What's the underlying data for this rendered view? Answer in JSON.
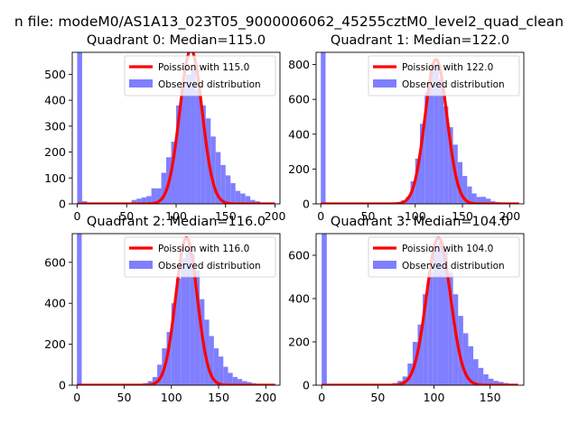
{
  "suptitle": "n file: modeM0/AS1A13_023T05_9000006062_45255cztM0_level2_quad_clean",
  "colors": {
    "histogram": "#7f7fff",
    "poisson": "#ff0000",
    "axes": "#000000"
  },
  "chart_data": [
    {
      "type": "bar",
      "title": "Quadrant 0: Median=115.0",
      "median": 115.0,
      "xlim": [
        -5,
        205
      ],
      "ylim": [
        0,
        585
      ],
      "xticks": [
        0,
        50,
        100,
        150,
        200
      ],
      "xtick_labels": [
        "0",
        "50",
        "100",
        "150",
        "200"
      ],
      "yticks": [
        0,
        100,
        200,
        300,
        400,
        500
      ],
      "ytick_labels": [
        "0",
        "100",
        "200",
        "300",
        "400",
        "500"
      ],
      "legend": [
        "Poission with 115.0",
        "Observed distribution"
      ],
      "legend_loc": "upper right",
      "bin_width": 5,
      "hist_bins": [
        0,
        5,
        10,
        15,
        20,
        25,
        30,
        35,
        40,
        45,
        50,
        55,
        60,
        65,
        70,
        75,
        80,
        85,
        90,
        95,
        100,
        105,
        110,
        115,
        120,
        125,
        130,
        135,
        140,
        145,
        150,
        155,
        160,
        165,
        170,
        175,
        180,
        185,
        190,
        195
      ],
      "hist_counts": [
        585,
        10,
        5,
        3,
        2,
        2,
        2,
        2,
        3,
        4,
        5,
        15,
        20,
        25,
        30,
        60,
        60,
        120,
        180,
        240,
        380,
        460,
        500,
        520,
        440,
        380,
        330,
        260,
        200,
        150,
        110,
        80,
        50,
        40,
        30,
        15,
        10,
        5,
        3,
        2
      ],
      "poisson_lambda": 115.0,
      "poisson_peak": 595
    },
    {
      "type": "bar",
      "title": "Quadrant 1: Median=122.0",
      "median": 122.0,
      "xlim": [
        -5,
        215
      ],
      "ylim": [
        0,
        870
      ],
      "xticks": [
        0,
        50,
        100,
        150,
        200
      ],
      "xtick_labels": [
        "0",
        "50",
        "100",
        "150",
        "200"
      ],
      "yticks": [
        0,
        200,
        400,
        600,
        800
      ],
      "ytick_labels": [
        "0",
        "200",
        "400",
        "600",
        "800"
      ],
      "legend": [
        "Poission with 122.0",
        "Observed distribution"
      ],
      "legend_loc": "upper right",
      "bin_width": 5,
      "hist_bins": [
        0,
        5,
        10,
        15,
        20,
        25,
        30,
        35,
        40,
        45,
        50,
        55,
        60,
        65,
        70,
        75,
        80,
        85,
        90,
        95,
        100,
        105,
        110,
        115,
        120,
        125,
        130,
        135,
        140,
        145,
        150,
        155,
        160,
        165,
        170,
        175,
        180,
        185,
        190,
        195,
        200,
        205
      ],
      "hist_counts": [
        870,
        5,
        3,
        2,
        2,
        2,
        2,
        2,
        2,
        3,
        3,
        4,
        5,
        5,
        5,
        5,
        10,
        20,
        40,
        130,
        260,
        460,
        640,
        760,
        800,
        720,
        560,
        440,
        340,
        240,
        160,
        100,
        60,
        40,
        40,
        30,
        15,
        10,
        5,
        3,
        2,
        2
      ],
      "poisson_lambda": 122.0,
      "poisson_peak": 830
    },
    {
      "type": "bar",
      "title": "Quadrant 2: Median=116.0",
      "median": 116.0,
      "xlim": [
        -5,
        215
      ],
      "ylim": [
        0,
        740
      ],
      "xticks": [
        0,
        50,
        100,
        150,
        200
      ],
      "xtick_labels": [
        "0",
        "50",
        "100",
        "150",
        "200"
      ],
      "yticks": [
        0,
        200,
        400,
        600
      ],
      "ytick_labels": [
        "0",
        "200",
        "400",
        "600"
      ],
      "legend": [
        "Poission with 116.0",
        "Observed distribution"
      ],
      "legend_loc": "upper right",
      "bin_width": 5,
      "hist_bins": [
        0,
        5,
        10,
        15,
        20,
        25,
        30,
        35,
        40,
        45,
        50,
        55,
        60,
        65,
        70,
        75,
        80,
        85,
        90,
        95,
        100,
        105,
        110,
        115,
        120,
        125,
        130,
        135,
        140,
        145,
        150,
        155,
        160,
        165,
        170,
        175,
        180,
        185,
        190,
        195,
        200,
        205
      ],
      "hist_counts": [
        740,
        3,
        2,
        2,
        2,
        2,
        2,
        2,
        2,
        2,
        2,
        3,
        3,
        5,
        10,
        20,
        40,
        100,
        180,
        260,
        400,
        520,
        620,
        660,
        640,
        560,
        420,
        320,
        240,
        180,
        140,
        90,
        60,
        40,
        30,
        20,
        15,
        10,
        5,
        3,
        2,
        2
      ],
      "poisson_lambda": 116.0,
      "poisson_peak": 720
    },
    {
      "type": "bar",
      "title": "Quadrant 3: Median=104.0",
      "median": 104.0,
      "xlim": [
        -5,
        180
      ],
      "ylim": [
        0,
        700
      ],
      "xticks": [
        0,
        50,
        100,
        150
      ],
      "xtick_labels": [
        "0",
        "50",
        "100",
        "150"
      ],
      "yticks": [
        0,
        200,
        400,
        600
      ],
      "ytick_labels": [
        "0",
        "200",
        "400",
        "600"
      ],
      "legend": [
        "Poission with 104.0",
        "Observed distribution"
      ],
      "legend_loc": "upper right",
      "bin_width": 4.5,
      "hist_bins": [
        0,
        4.5,
        9,
        13.5,
        18,
        22.5,
        27,
        31.5,
        36,
        40.5,
        45,
        49.5,
        54,
        58.5,
        63,
        67.5,
        72,
        76.5,
        81,
        85.5,
        90,
        94.5,
        99,
        103.5,
        108,
        112.5,
        117,
        121.5,
        126,
        130.5,
        135,
        139.5,
        144,
        148.5,
        153,
        157.5,
        162,
        166.5
      ],
      "hist_counts": [
        700,
        3,
        2,
        2,
        2,
        2,
        2,
        2,
        2,
        2,
        2,
        2,
        3,
        5,
        10,
        20,
        40,
        100,
        200,
        280,
        420,
        520,
        620,
        660,
        620,
        520,
        420,
        320,
        240,
        180,
        120,
        80,
        50,
        30,
        20,
        15,
        10,
        5
      ],
      "poisson_lambda": 104.0,
      "poisson_peak": 680
    }
  ]
}
